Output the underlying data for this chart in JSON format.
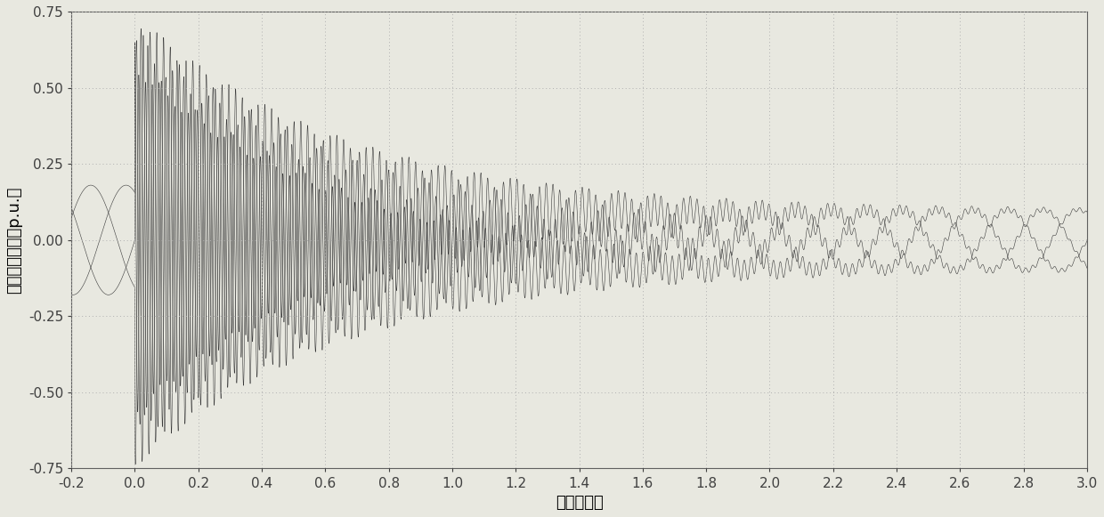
{
  "title": "",
  "xlabel": "时间（秒）",
  "ylabel": "转子感应电势（p.u.）",
  "xlim": [
    -0.2,
    3.0
  ],
  "ylim": [
    -0.75,
    0.75
  ],
  "xticks": [
    -0.2,
    0.0,
    0.2,
    0.4,
    0.6,
    0.8,
    1.0,
    1.2,
    1.4,
    1.6,
    1.8,
    2.0,
    2.2,
    2.4,
    2.6,
    2.8,
    3.0
  ],
  "yticks": [
    -0.75,
    -0.5,
    -0.25,
    0.0,
    0.25,
    0.5,
    0.75
  ],
  "grid_color": "#b0b0b0",
  "line_color": "#3a3a3a",
  "bg_color": "#e8e8e0",
  "pre_fault_amp": 0.18,
  "slip_freq": 3.0,
  "post_fault_initial_amp": 0.65,
  "decay_tau": 0.65,
  "rotor_freq": 47.0,
  "steady_amp": 0.1,
  "xlabel_fontsize": 13,
  "ylabel_fontsize": 13,
  "tick_fontsize": 11
}
